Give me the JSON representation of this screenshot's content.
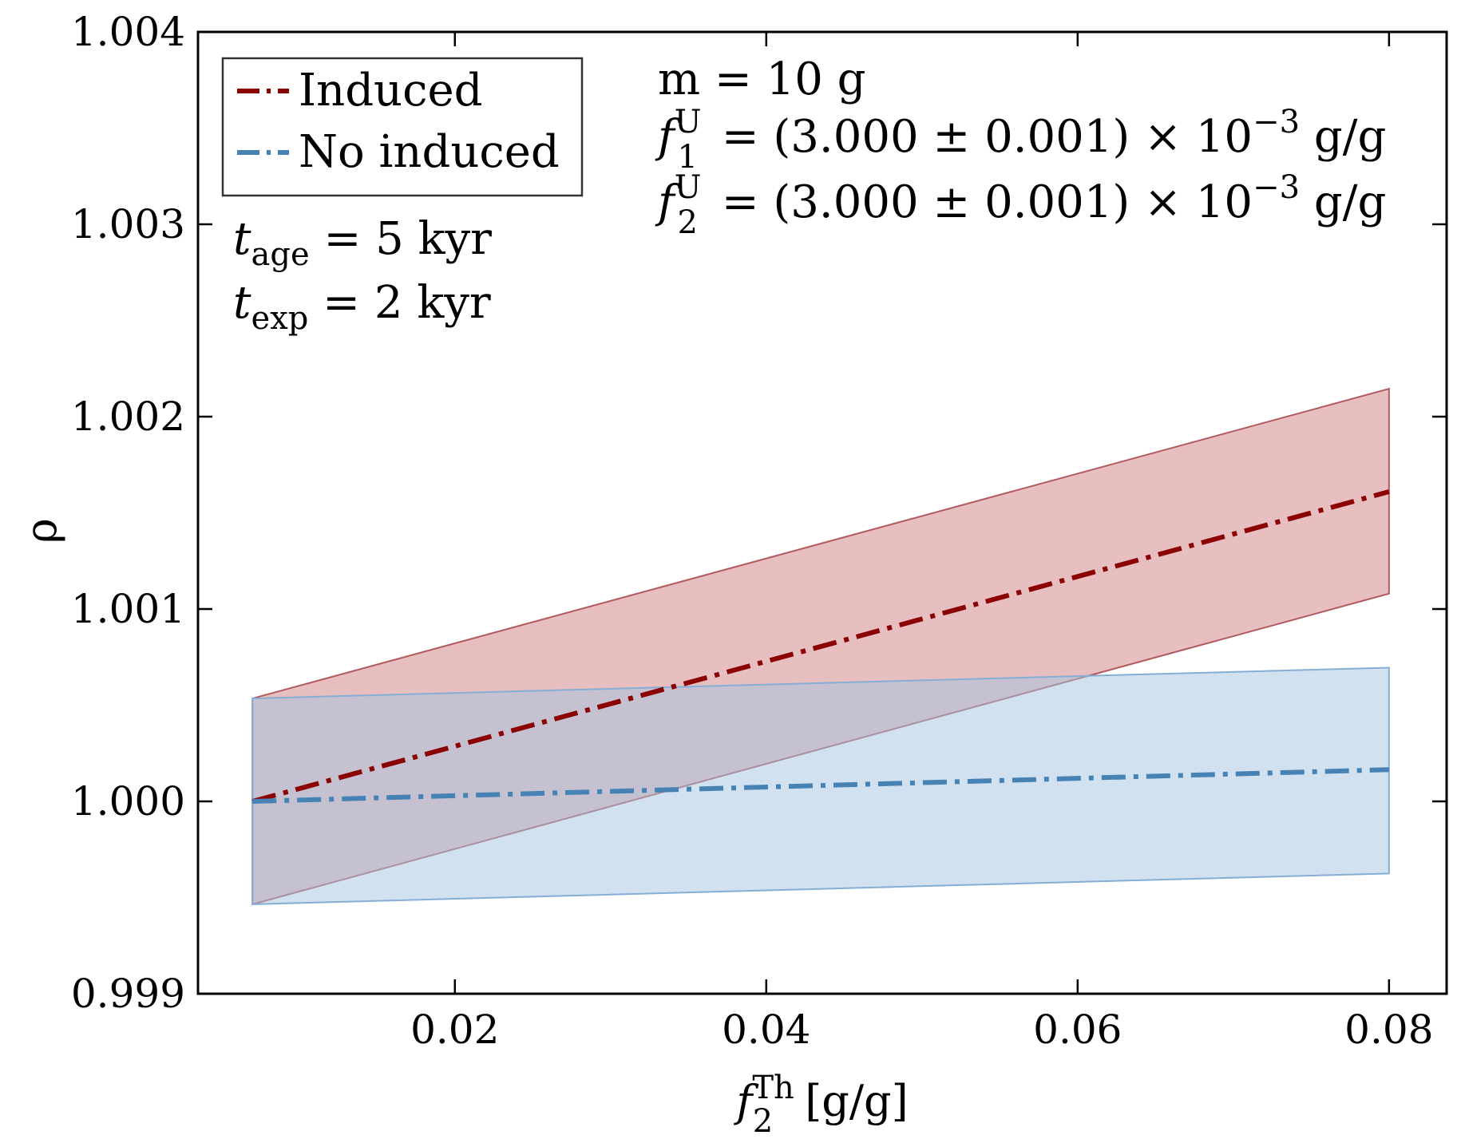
{
  "chart_data": {
    "type": "line",
    "xlabel": {
      "base": "f",
      "sub": "2",
      "sup": "Th",
      "unit": "[g/g]"
    },
    "ylabel": "ρ",
    "xlim": [
      0.0035,
      0.0837
    ],
    "ylim": [
      0.999,
      1.004
    ],
    "xticks": [
      0.02,
      0.04,
      0.06,
      0.08
    ],
    "xtick_labels": [
      "0.02",
      "0.04",
      "0.06",
      "0.08"
    ],
    "yticks": [
      0.999,
      1.0,
      1.001,
      1.002,
      1.003,
      1.004
    ],
    "ytick_labels": [
      "0.999",
      "1.000",
      "1.001",
      "1.002",
      "1.003",
      "1.004"
    ],
    "grid": false,
    "legend_position": "top-left",
    "series": [
      {
        "name": "Induced",
        "color": "#8b0000",
        "band_fill": "#c97276",
        "band_edge": "#b25a5e",
        "x": [
          0.007,
          0.08
        ],
        "center": [
          1.0,
          1.00161
        ],
        "upper": [
          1.000535,
          1.002145
        ],
        "lower": [
          0.999465,
          1.00108
        ]
      },
      {
        "name": "No induced",
        "color": "#4682b4",
        "band_fill": "#a3c3e0",
        "band_edge": "#86aed4",
        "x": [
          0.007,
          0.08
        ],
        "center": [
          1.0,
          1.000165
        ],
        "upper": [
          1.000535,
          1.000695
        ],
        "lower": [
          0.999465,
          0.999625
        ]
      }
    ],
    "annotations_left": [
      {
        "base": "t",
        "sub": "age",
        "rest": " = 5 kyr"
      },
      {
        "base": "t",
        "sub": "exp",
        "rest": " = 2 kyr"
      }
    ],
    "annotations_right": [
      {
        "text": "m = 10 g"
      },
      {
        "base": "f",
        "sub": "1",
        "sup": "U",
        "rest": " = (3.000 ± 0.001) × 10",
        "exp": "−3",
        "unit": " g/g"
      },
      {
        "base": "f",
        "sub": "2",
        "sup": "U",
        "rest": " = (3.000 ± 0.001) × 10",
        "exp": "−3",
        "unit": " g/g"
      }
    ]
  }
}
